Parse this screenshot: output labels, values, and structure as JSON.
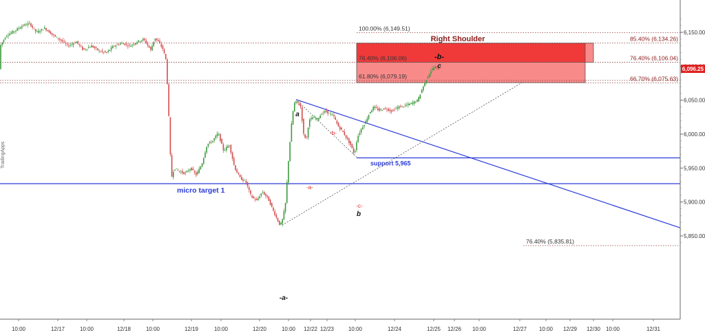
{
  "chart_data": {
    "type": "candlestick",
    "watermark": "TradingApps",
    "y_axis": {
      "range": [
        5830,
        6172
      ],
      "ticks": [
        "6,150.00",
        "6,100.00",
        "6,050.00",
        "6,000.00",
        "5,950.00",
        "5,900.00",
        "5,850.00"
      ],
      "tick_values": [
        6150,
        6100,
        6050,
        6000,
        5950,
        5900,
        5850
      ]
    },
    "x_axis": {
      "labels": [
        "10:00",
        "12/17",
        "10:00",
        "12/18",
        "10:00",
        "12/19",
        "10:00",
        "12/20",
        "10:00",
        "12/22",
        "12/23",
        "10:00",
        "12/24",
        "12/25",
        "12/26",
        "10:00",
        "12/27",
        "10:00",
        "12/29",
        "12/30",
        "10:00",
        "12/31"
      ]
    },
    "last_price": {
      "label": "6,096.25",
      "value": 6096.25,
      "color": "#e02020"
    },
    "fib_levels": [
      {
        "label": "100.00% (6,149.51)",
        "value": 6149.51,
        "side": "left"
      },
      {
        "label": "85.40% (6,134.26)",
        "value": 6134.26,
        "side": "right"
      },
      {
        "label": "76.40% (6,106.06)",
        "value": 6106.06,
        "side": "left"
      },
      {
        "label": "76.40% (6,106.04)",
        "value": 6106.04,
        "side": "right"
      },
      {
        "label": "61.80% (6,079.19)",
        "value": 6079.19,
        "side": "left"
      },
      {
        "label": "66.70% (6,075.63)",
        "value": 6075.63,
        "side": "right"
      },
      {
        "label": "76.40% (5,835.81)",
        "value": 5835.81,
        "side": "left"
      }
    ],
    "zone": {
      "title": "Right Shoulder",
      "upper": [
        6106,
        6134
      ],
      "lower": [
        6076,
        6106
      ],
      "colors": {
        "upper": "#f03a3a",
        "lower": "#f88a8a",
        "title": "#8b1a1a"
      }
    },
    "horizontal_lines": [
      {
        "label": "micro target 1",
        "value": 5927,
        "color": "#2a3ad8"
      },
      {
        "label": "support 5,965",
        "value": 5965,
        "color": "#2a3ad8"
      }
    ],
    "wave_labels": [
      {
        "text": "a",
        "color": "#111111"
      },
      {
        "text": "-b-",
        "color": "#e02020"
      },
      {
        "text": "-a-",
        "color": "#e02020"
      },
      {
        "text": "-c-",
        "color": "#e02020"
      },
      {
        "text": "b",
        "color": "#111111"
      },
      {
        "text": "-a-",
        "color": "#111111"
      },
      {
        "text": "-b-",
        "color": "#111111"
      },
      {
        "text": "c",
        "color": "#111111"
      }
    ],
    "price_path": [
      [
        0,
        6128
      ],
      [
        10,
        6145
      ],
      [
        22,
        6152
      ],
      [
        34,
        6160
      ],
      [
        44,
        6163
      ],
      [
        54,
        6150
      ],
      [
        66,
        6156
      ],
      [
        78,
        6146
      ],
      [
        90,
        6138
      ],
      [
        100,
        6130
      ],
      [
        112,
        6136
      ],
      [
        122,
        6124
      ],
      [
        134,
        6130
      ],
      [
        146,
        6122
      ],
      [
        156,
        6120
      ],
      [
        166,
        6130
      ],
      [
        178,
        6134
      ],
      [
        190,
        6130
      ],
      [
        200,
        6136
      ],
      [
        210,
        6140
      ],
      [
        220,
        6124
      ],
      [
        226,
        6142
      ],
      [
        232,
        6135
      ],
      [
        238,
        6125
      ],
      [
        242,
        6110
      ],
      [
        245,
        6060
      ],
      [
        248,
        5980
      ],
      [
        250,
        5935
      ],
      [
        254,
        5950
      ],
      [
        262,
        5945
      ],
      [
        270,
        5942
      ],
      [
        278,
        5950
      ],
      [
        286,
        5940
      ],
      [
        294,
        5955
      ],
      [
        302,
        5985
      ],
      [
        310,
        5990
      ],
      [
        318,
        6002
      ],
      [
        326,
        5975
      ],
      [
        334,
        5985
      ],
      [
        342,
        5950
      ],
      [
        350,
        5935
      ],
      [
        358,
        5930
      ],
      [
        366,
        5908
      ],
      [
        374,
        5902
      ],
      [
        382,
        5915
      ],
      [
        390,
        5906
      ],
      [
        396,
        5892
      ],
      [
        402,
        5878
      ],
      [
        408,
        5865
      ],
      [
        412,
        5876
      ],
      [
        416,
        5900
      ],
      [
        420,
        5960
      ],
      [
        424,
        6010
      ],
      [
        428,
        6045
      ],
      [
        432,
        6048
      ],
      [
        438,
        6040
      ],
      [
        442,
        6000
      ],
      [
        446,
        5992
      ],
      [
        450,
        6020
      ],
      [
        456,
        6025
      ],
      [
        462,
        6022
      ],
      [
        468,
        6030
      ],
      [
        474,
        6034
      ],
      [
        480,
        6030
      ],
      [
        486,
        6026
      ],
      [
        492,
        6012
      ],
      [
        498,
        6005
      ],
      [
        504,
        5995
      ],
      [
        510,
        5985
      ],
      [
        516,
        5970
      ],
      [
        520,
        5995
      ],
      [
        526,
        6008
      ],
      [
        532,
        6018
      ],
      [
        538,
        6032
      ],
      [
        544,
        6040
      ],
      [
        552,
        6035
      ],
      [
        560,
        6038
      ],
      [
        570,
        6034
      ],
      [
        580,
        6040
      ],
      [
        590,
        6042
      ],
      [
        600,
        6046
      ],
      [
        608,
        6050
      ],
      [
        614,
        6066
      ],
      [
        620,
        6080
      ],
      [
        626,
        6092
      ],
      [
        632,
        6099
      ],
      [
        638,
        6096
      ]
    ],
    "triangle_lines": [
      {
        "from": [
          430,
          6051
        ],
        "to": [
          988,
          5862
        ],
        "color": "#2a3ad8"
      }
    ],
    "dotted_lines": [
      {
        "from": [
          410,
          5866
        ],
        "to": [
          760,
          6077
        ]
      },
      {
        "from": [
          430,
          6051
        ],
        "to": [
          518,
          5966
        ]
      }
    ]
  }
}
